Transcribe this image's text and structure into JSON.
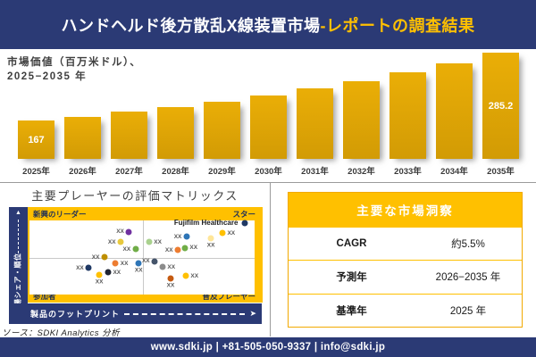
{
  "header": {
    "title_main": "ハンドヘルド後方散乱X線装置市場",
    "title_accent": "-レポートの調査結果"
  },
  "bar_section": {
    "subtitle_line1": "市場価値（百万米ドル）、",
    "subtitle_line2": "2025−2035 年"
  },
  "chart_data": [
    {
      "type": "bar",
      "title": "市場価値（百万米ドル）、2025−2035 年",
      "categories": [
        "2025年",
        "2026年",
        "2027年",
        "2028年",
        "2029年",
        "2030年",
        "2031年",
        "2032年",
        "2033年",
        "2034年",
        "2035年"
      ],
      "values": [
        167,
        176.2,
        185.9,
        196.1,
        206.9,
        218.3,
        230.3,
        242.9,
        256.3,
        270.4,
        285.2
      ],
      "data_labels": {
        "first": "167",
        "last": "285.2"
      },
      "ylabel": "市場価値（百万米ドル）",
      "ylim": [
        0,
        300
      ],
      "bar_color": "#DDA407",
      "grid": false,
      "legend": false
    },
    {
      "type": "scatter",
      "title": "主要プレーヤーの評価マトリックス",
      "xlabel": "製品のフットプリント",
      "ylabel": "市場シェア・順位",
      "xlim": [
        0,
        100
      ],
      "ylim": [
        0,
        100
      ],
      "quadrants": {
        "top_left": "新興のリーダー",
        "top_right": "スター",
        "bottom_left": "参加者",
        "bottom_right": "普及プレーヤー"
      },
      "points": [
        {
          "x": 44.2,
          "y": 84.9,
          "color": "#7030A0",
          "label": "XX",
          "side": "left"
        },
        {
          "x": 40.5,
          "y": 70.7,
          "color": "#E8C93D",
          "label": "XX",
          "side": "left"
        },
        {
          "x": 47.1,
          "y": 61.4,
          "color": "#70AD47",
          "label": "XX",
          "side": "left"
        },
        {
          "x": 33.3,
          "y": 50.6,
          "color": "#BF8F00",
          "label": "XX",
          "side": "left"
        },
        {
          "x": 38.2,
          "y": 41.8,
          "color": "#ED7D31",
          "label": "XX",
          "side": "right"
        },
        {
          "x": 48.5,
          "y": 42.5,
          "color": "#2E75B6",
          "label": "XX",
          "side": "below"
        },
        {
          "x": 26.3,
          "y": 35.8,
          "color": "#1F3864",
          "label": "XX",
          "side": "left"
        },
        {
          "x": 34.9,
          "y": 29.8,
          "color": "#1F2433",
          "label": "XX",
          "side": "right"
        },
        {
          "x": 31.0,
          "y": 26.5,
          "color": "#FFC000",
          "label": "XX",
          "side": "below"
        },
        {
          "x": 53.1,
          "y": 70.7,
          "color": "#A9D18E",
          "label": "XX",
          "side": "right"
        },
        {
          "x": 69.8,
          "y": 78.3,
          "color": "#2E75B6",
          "label": "XX",
          "side": "left"
        },
        {
          "x": 80.6,
          "y": 75.9,
          "color": "#FFE699",
          "label": "XX",
          "side": "below"
        },
        {
          "x": 85.7,
          "y": 83.1,
          "color": "#FFC000",
          "label": "XX",
          "side": "right"
        },
        {
          "x": 95.6,
          "y": 96.4,
          "color": "#1F3864",
          "label": "Fujifilm Healthcare",
          "side": "left",
          "company": true
        },
        {
          "x": 65.9,
          "y": 60.2,
          "color": "#ED7D31",
          "label": "XX",
          "side": "left"
        },
        {
          "x": 69.0,
          "y": 62.7,
          "color": "#70AD47",
          "label": "XX",
          "side": "right"
        },
        {
          "x": 55.6,
          "y": 44.6,
          "color": "#44546A",
          "label": "XX",
          "side": "left"
        },
        {
          "x": 59.1,
          "y": 37.3,
          "color": "#8C8C8C",
          "label": "XX",
          "side": "right"
        },
        {
          "x": 62.7,
          "y": 22.0,
          "color": "#C55A11",
          "label": "XX",
          "side": "below"
        },
        {
          "x": 69.4,
          "y": 25.3,
          "color": "#FFC000",
          "label": "XX",
          "side": "right"
        }
      ]
    }
  ],
  "matrix": {
    "title": "主要プレーヤーの評価マトリックス",
    "x_axis": "製品のフットプリント",
    "y_axis": "市場シェア・順位",
    "quadrant_top_left": "新興のリーダー",
    "quadrant_top_right": "スター",
    "quadrant_bottom_left": "参加者",
    "quadrant_bottom_right": "普及プレーヤー",
    "highlight_company": "Fujifilm Healthcare"
  },
  "insights": {
    "header": "主要な市場洞察",
    "rows": [
      {
        "label": "CAGR",
        "value": "約5.5%"
      },
      {
        "label": "予測年",
        "value": "2026−2035 年"
      },
      {
        "label": "基準年",
        "value": "2025 年"
      }
    ]
  },
  "source_note": "ソース：SDKI Analytics 分析",
  "footer": {
    "text": "www.sdki.jp | +81-505-050-9337 | info@sdki.jp"
  },
  "colors": {
    "navy": "#2B3A75",
    "gold": "#FFC000",
    "bar_gold_top": "#EAAE06",
    "bar_gold_bottom": "#D29B05",
    "divider_gray": "#9B9B9B"
  }
}
